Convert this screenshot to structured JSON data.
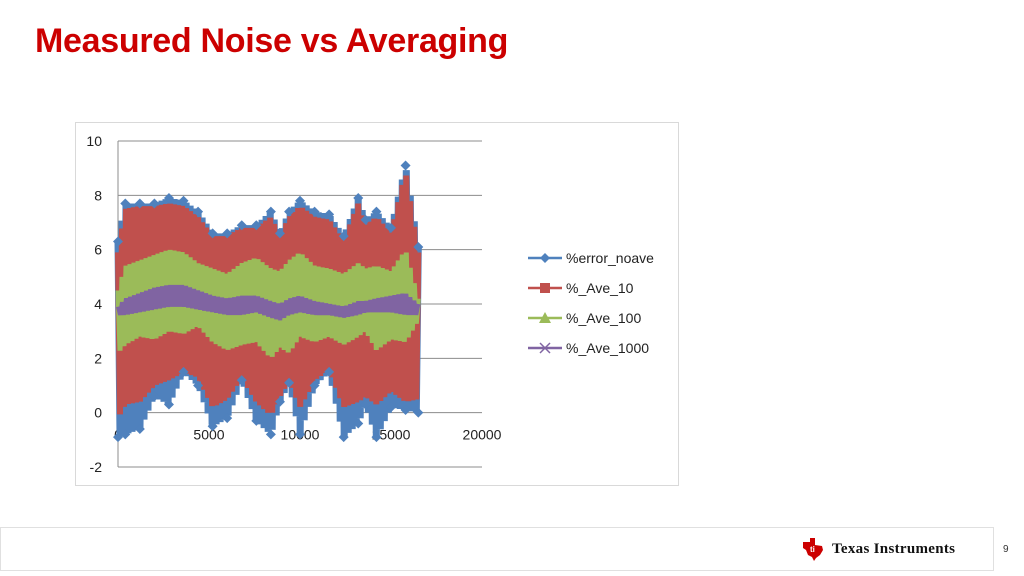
{
  "slide": {
    "title": "Measured Noise vs Averaging",
    "page_number": "9"
  },
  "brand": {
    "name": "Texas Instruments",
    "wordmark": "Texas Instruments",
    "logo_icon": "texas-state-icon",
    "color": "#cc0000"
  },
  "chart_data": {
    "type": "line",
    "title": "",
    "xlabel": "",
    "ylabel": "",
    "xlim": [
      0,
      20000
    ],
    "ylim": [
      -2,
      10
    ],
    "x_ticks": [
      0,
      5000,
      10000,
      15000,
      20000
    ],
    "x_tick_labels": [
      "0",
      "5000",
      "10000",
      "15000",
      "20000"
    ],
    "y_ticks": [
      -2,
      0,
      2,
      4,
      6,
      8,
      10
    ],
    "y_tick_labels": [
      "-2",
      "0",
      "2",
      "4",
      "6",
      "8",
      "10"
    ],
    "grid": "horizontal",
    "legend_position": "right",
    "series": [
      {
        "name": "%error_noave",
        "color": "#4f81bd",
        "marker": "diamond",
        "x": [
          0,
          400,
          1200,
          2000,
          2800,
          3600,
          4400,
          5200,
          6000,
          6800,
          7600,
          8400,
          8900,
          9400,
          10000,
          10800,
          11600,
          12400,
          13200,
          13600,
          14200,
          15000,
          15800,
          16500
        ],
        "min": [
          -0.9,
          -0.8,
          -0.6,
          0.6,
          0.3,
          1.5,
          1.0,
          -0.5,
          -0.2,
          1.2,
          -0.3,
          -0.8,
          0.4,
          1.1,
          -0.8,
          1.0,
          1.5,
          -0.9,
          -0.4,
          0.3,
          -0.9,
          0.2,
          0.1,
          0.0
        ],
        "max": [
          6.3,
          7.7,
          7.7,
          7.7,
          7.9,
          7.8,
          7.4,
          6.6,
          6.6,
          6.9,
          6.9,
          7.4,
          6.6,
          7.4,
          7.8,
          7.4,
          7.3,
          6.5,
          7.9,
          7.1,
          7.4,
          6.8,
          9.1,
          6.1
        ]
      },
      {
        "name": "%_Ave_10",
        "color": "#c0504d",
        "marker": "square",
        "x": [
          0,
          400,
          1200,
          2000,
          2800,
          3600,
          4400,
          5200,
          6000,
          6800,
          7600,
          8400,
          8900,
          9400,
          10000,
          10800,
          11600,
          12400,
          13200,
          13600,
          14200,
          15000,
          15800,
          16500
        ],
        "min": [
          -0.2,
          0.3,
          0.4,
          1.0,
          1.2,
          1.5,
          1.3,
          0.2,
          0.5,
          1.3,
          0.4,
          -0.1,
          0.6,
          1.2,
          0.2,
          1.2,
          1.6,
          0.2,
          0.4,
          0.6,
          0.3,
          0.8,
          0.4,
          0.5
        ],
        "max": [
          5.9,
          7.5,
          7.6,
          7.6,
          7.7,
          7.6,
          7.2,
          6.5,
          6.5,
          6.8,
          6.8,
          7.2,
          6.5,
          7.2,
          7.6,
          7.2,
          7.1,
          6.3,
          7.7,
          6.9,
          7.2,
          6.6,
          8.9,
          5.9
        ]
      },
      {
        "name": "%_Ave_100",
        "color": "#9bbb59",
        "marker": "triangle",
        "x": [
          0,
          400,
          1200,
          2000,
          2800,
          3600,
          4400,
          5200,
          6000,
          6800,
          7600,
          8400,
          8900,
          9400,
          10000,
          10800,
          11600,
          12400,
          13200,
          13600,
          14200,
          15000,
          15800,
          16500
        ],
        "min": [
          2.2,
          2.5,
          2.8,
          2.7,
          3.0,
          2.9,
          3.2,
          2.6,
          2.3,
          2.5,
          2.6,
          2.0,
          2.4,
          2.2,
          2.8,
          2.6,
          2.8,
          2.5,
          2.8,
          3.0,
          2.3,
          2.7,
          2.6,
          3.4
        ],
        "max": [
          4.5,
          5.4,
          5.6,
          5.8,
          6.0,
          5.9,
          5.5,
          5.3,
          5.1,
          5.5,
          5.7,
          5.3,
          5.2,
          5.6,
          5.9,
          5.4,
          5.3,
          5.1,
          5.5,
          5.3,
          5.4,
          5.2,
          6.0,
          4.2
        ]
      },
      {
        "name": "%_Ave_1000",
        "color": "#8064a2",
        "marker": "x",
        "x": [
          0,
          400,
          1200,
          2000,
          2800,
          3600,
          4400,
          5200,
          6000,
          6800,
          7600,
          8400,
          8900,
          9400,
          10000,
          10800,
          11600,
          12400,
          13200,
          13600,
          14200,
          15000,
          15800,
          16500
        ],
        "min": [
          3.6,
          3.6,
          3.7,
          3.8,
          3.9,
          3.9,
          3.8,
          3.7,
          3.6,
          3.6,
          3.7,
          3.5,
          3.4,
          3.6,
          3.7,
          3.6,
          3.6,
          3.5,
          3.6,
          3.7,
          3.7,
          3.7,
          3.6,
          3.6
        ],
        "max": [
          3.9,
          4.2,
          4.4,
          4.6,
          4.7,
          4.7,
          4.5,
          4.3,
          4.2,
          4.3,
          4.3,
          4.1,
          4.0,
          4.2,
          4.3,
          4.1,
          4.0,
          3.9,
          4.1,
          4.1,
          4.2,
          4.3,
          4.4,
          4.0
        ]
      }
    ]
  }
}
